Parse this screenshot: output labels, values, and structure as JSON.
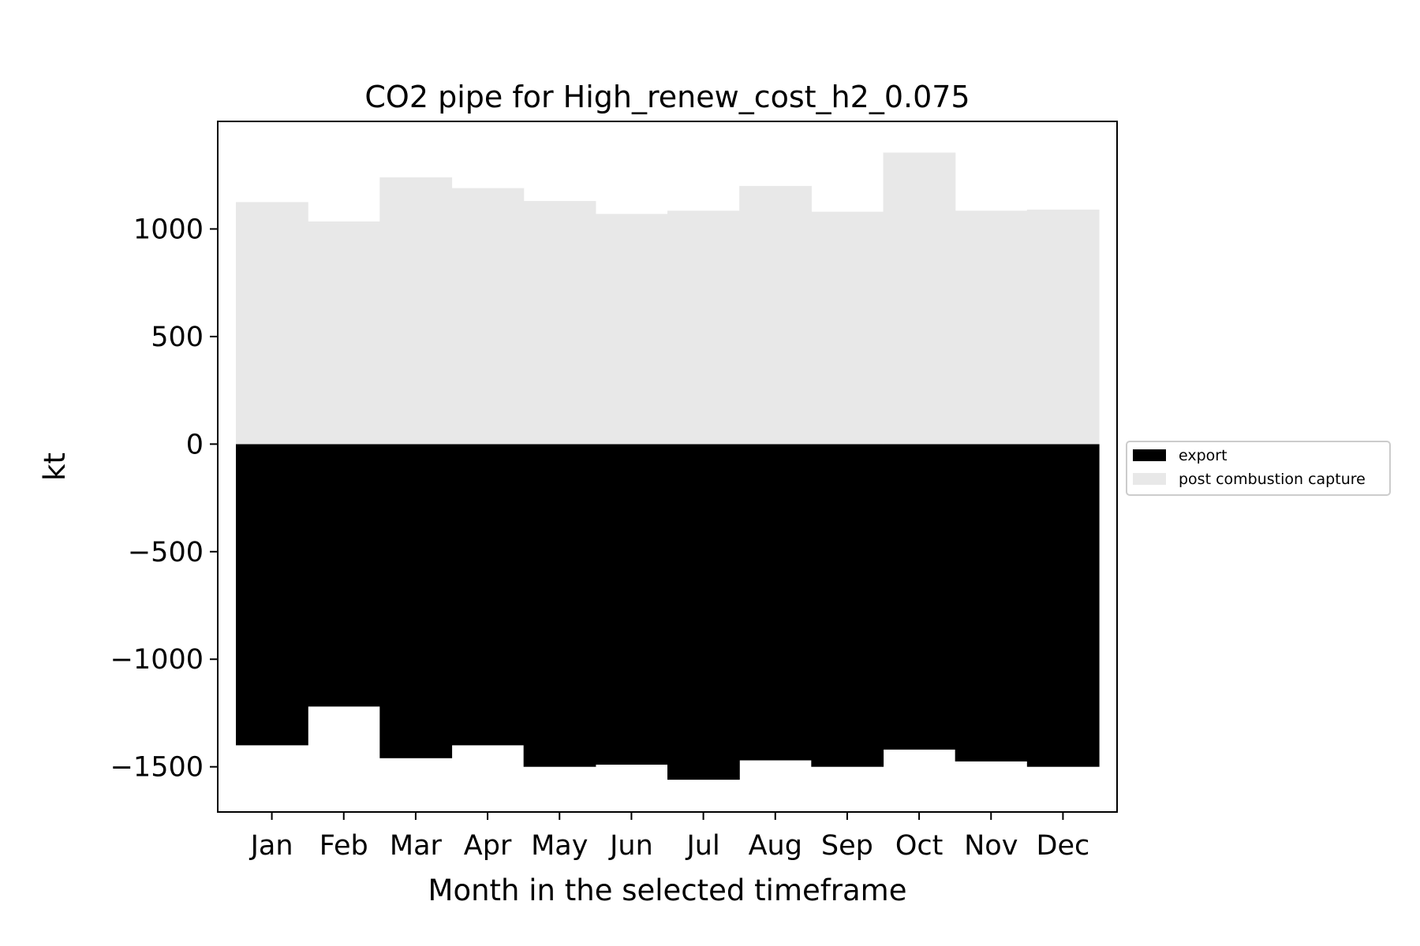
{
  "chart_data": {
    "type": "bar",
    "stacked": true,
    "title": "CO2 pipe for High_renew_cost_h2_0.075",
    "xlabel": "Month in the selected timeframe",
    "ylabel": "kt",
    "categories": [
      "Jan",
      "Feb",
      "Mar",
      "Apr",
      "May",
      "Jun",
      "Jul",
      "Aug",
      "Sep",
      "Oct",
      "Nov",
      "Dec"
    ],
    "series": [
      {
        "name": "export",
        "color": "#000000",
        "values": [
          -1400,
          -1220,
          -1460,
          -1400,
          -1500,
          -1490,
          -1560,
          -1470,
          -1500,
          -1420,
          -1475,
          -1500
        ]
      },
      {
        "name": "post combustion capture",
        "color": "#e8e8e8",
        "values": [
          1125,
          1035,
          1240,
          1190,
          1130,
          1070,
          1085,
          1200,
          1080,
          1355,
          1085,
          1090
        ]
      }
    ],
    "ylim": [
      -1710,
      1500
    ],
    "yticks": [
      -1500,
      -1000,
      -500,
      0,
      500,
      1000
    ],
    "ytick_labels": [
      "−1500",
      "−1000",
      "−500",
      "0",
      "500",
      "1000"
    ],
    "grid": false,
    "legend_placement": "right-outside"
  }
}
